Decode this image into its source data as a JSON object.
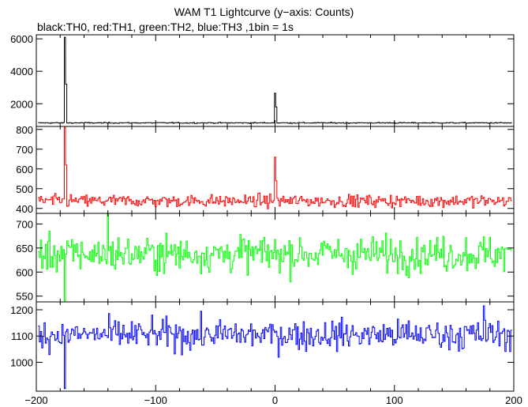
{
  "title": "WAM T1 Lightcurve (y−axis: Counts)",
  "subtitle": "black:TH0, red:TH1, green:TH2, blue:TH3 ,1bin = 1s",
  "chart_data": [
    {
      "type": "line",
      "series": [
        {
          "name": "TH0",
          "color": "#000000",
          "baseline": 820,
          "noise": 22,
          "spikes": [
            {
              "x": -176,
              "y": 6100
            },
            {
              "x": -175,
              "y": 3200
            },
            {
              "x": 0,
              "y": 2650
            },
            {
              "x": 1,
              "y": 1800
            }
          ]
        }
      ],
      "xlim": [
        -200,
        200
      ],
      "ylim": [
        600,
        6250
      ],
      "yticks": [
        2000,
        4000,
        6000
      ],
      "ytick_labels": [
        "2000",
        "4000",
        "6000"
      ]
    },
    {
      "type": "line",
      "series": [
        {
          "name": "TH1",
          "color": "#ff0000",
          "baseline": 438,
          "noise": 22,
          "spikes": [
            {
              "x": -176,
              "y": 810
            },
            {
              "x": -175,
              "y": 620
            },
            {
              "x": 0,
              "y": 660
            },
            {
              "x": 1,
              "y": 540
            }
          ]
        }
      ],
      "xlim": [
        -200,
        200
      ],
      "ylim": [
        375,
        815
      ],
      "yticks": [
        400,
        500,
        600,
        700,
        800
      ],
      "ytick_labels": [
        "400",
        "500",
        "600",
        "700",
        "800"
      ]
    },
    {
      "type": "line",
      "series": [
        {
          "name": "TH2",
          "color": "#00ff00",
          "baseline": 638,
          "noise": 26,
          "spikes": [
            {
              "x": -176,
              "y": 540
            },
            {
              "x": -140,
              "y": 730
            }
          ]
        }
      ],
      "xlim": [
        -200,
        200
      ],
      "ylim": [
        538,
        722
      ],
      "yticks": [
        550,
        600,
        650,
        700
      ],
      "ytick_labels": [
        "550",
        "600",
        "650",
        "700"
      ]
    },
    {
      "type": "line",
      "series": [
        {
          "name": "TH3",
          "color": "#0000ff",
          "baseline": 1105,
          "noise": 40,
          "spikes": [
            {
              "x": -176,
              "y": 900
            },
            {
              "x": 175,
              "y": 1215
            }
          ]
        }
      ],
      "xlim": [
        -200,
        200
      ],
      "ylim": [
        890,
        1230
      ],
      "yticks": [
        1000,
        1100,
        1200
      ],
      "ytick_labels": [
        "1000",
        "1100",
        "1200"
      ],
      "xticks": [
        -200,
        -100,
        0,
        100,
        200
      ],
      "xtick_labels": [
        "−200",
        "−100",
        "0",
        "100",
        "200"
      ]
    }
  ]
}
